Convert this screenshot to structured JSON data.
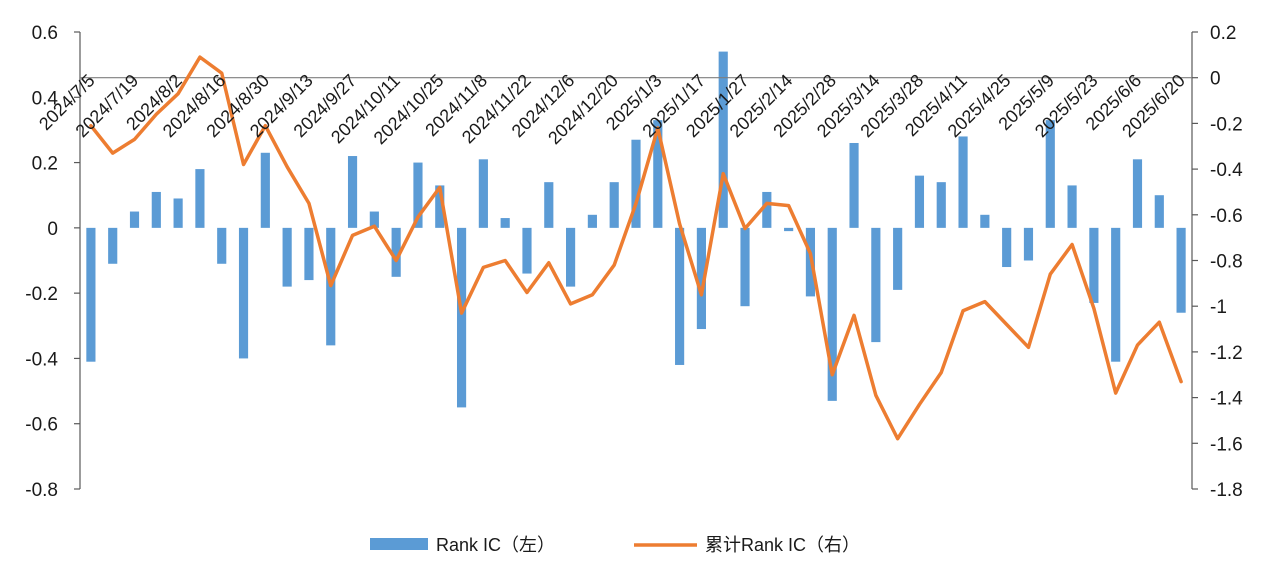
{
  "chart_data": {
    "type": "bar+line",
    "title": "",
    "categories": [
      "2024/7/5",
      "2024/7/19",
      "2024/8/2",
      "2024/8/16",
      "2024/8/30",
      "2024/9/13",
      "2024/9/27",
      "2024/10/11",
      "2024/10/25",
      "2024/11/8",
      "2024/11/22",
      "2024/12/6",
      "2024/12/20",
      "2025/1/3",
      "2025/1/17",
      "2025/1/27",
      "2025/2/14",
      "2025/2/28",
      "2025/3/14",
      "2025/3/28",
      "2025/4/11",
      "2025/4/25",
      "2025/5/9",
      "2025/5/23",
      "2025/6/6",
      "2025/6/20"
    ],
    "x": [
      "2024/7/5",
      "2024/7/12",
      "2024/7/19",
      "2024/7/26",
      "2024/8/2",
      "2024/8/9",
      "2024/8/16",
      "2024/8/23",
      "2024/8/30",
      "2024/9/6",
      "2024/9/13",
      "2024/9/20",
      "2024/9/27",
      "2024/10/4",
      "2024/10/11",
      "2024/10/18",
      "2024/10/25",
      "2024/11/1",
      "2024/11/8",
      "2024/11/15",
      "2024/11/22",
      "2024/11/29",
      "2024/12/6",
      "2024/12/13",
      "2024/12/20",
      "2024/12/27",
      "2025/1/3",
      "2025/1/10",
      "2025/1/17",
      "2025/1/24",
      "2025/1/27",
      "2025/2/7",
      "2025/2/14",
      "2025/2/21",
      "2025/2/28",
      "2025/3/7",
      "2025/3/14",
      "2025/3/21",
      "2025/3/28",
      "2025/4/4",
      "2025/4/11",
      "2025/4/18",
      "2025/4/25",
      "2025/5/2",
      "2025/5/9",
      "2025/5/16",
      "2025/5/23",
      "2025/5/30",
      "2025/6/6",
      "2025/6/13",
      "2025/6/20"
    ],
    "series": [
      {
        "name": "Rank IC（左）",
        "type": "bar",
        "axis": "left",
        "color": "#5b9bd5",
        "values": [
          -0.41,
          -0.11,
          0.05,
          0.11,
          0.09,
          0.18,
          -0.11,
          -0.4,
          0.23,
          -0.18,
          -0.16,
          -0.36,
          0.22,
          0.05,
          -0.15,
          0.2,
          0.13,
          -0.55,
          0.21,
          0.03,
          -0.14,
          0.14,
          -0.18,
          0.04,
          0.14,
          0.27,
          0.33,
          -0.42,
          -0.31,
          0.54,
          -0.24,
          0.11,
          -0.01,
          -0.21,
          -0.53,
          0.26,
          -0.35,
          -0.19,
          0.16,
          0.14,
          0.28,
          0.04,
          -0.12,
          -0.1,
          0.33,
          0.13,
          -0.23,
          -0.41,
          0.21,
          0.1,
          -0.26
        ]
      },
      {
        "name": "累计Rank IC（右）",
        "type": "line",
        "axis": "right",
        "color": "#ed7d31",
        "values": [
          -0.21,
          -0.33,
          -0.27,
          -0.16,
          -0.07,
          0.09,
          0.02,
          -0.38,
          -0.21,
          -0.39,
          -0.55,
          -0.91,
          -0.69,
          -0.65,
          -0.8,
          -0.61,
          -0.48,
          -1.03,
          -0.83,
          -0.8,
          -0.94,
          -0.81,
          -0.99,
          -0.95,
          -0.82,
          -0.55,
          -0.22,
          -0.64,
          -0.95,
          -0.42,
          -0.66,
          -0.55,
          -0.56,
          -0.77,
          -1.3,
          -1.04,
          -1.39,
          -1.58,
          -1.43,
          -1.29,
          -1.02,
          -0.98,
          -1.08,
          -1.18,
          -0.86,
          -0.73,
          -1.01,
          -1.38,
          -1.17,
          -1.07,
          -1.33
        ]
      }
    ],
    "y_left": {
      "min": -0.8,
      "max": 0.6,
      "step": 0.2,
      "ticks": [
        "-0.8",
        "-0.6",
        "-0.4",
        "-0.2",
        "0",
        "0.2",
        "0.4",
        "0.6"
      ]
    },
    "y_right": {
      "min": -1.8,
      "max": 0.2,
      "step": 0.2,
      "ticks": [
        "-1.8",
        "-1.6",
        "-1.4",
        "-1.2",
        "-1",
        "-0.8",
        "-0.6",
        "-0.4",
        "-0.2",
        "0",
        "0.2"
      ]
    },
    "grid": false,
    "legend": "bottom-center"
  }
}
